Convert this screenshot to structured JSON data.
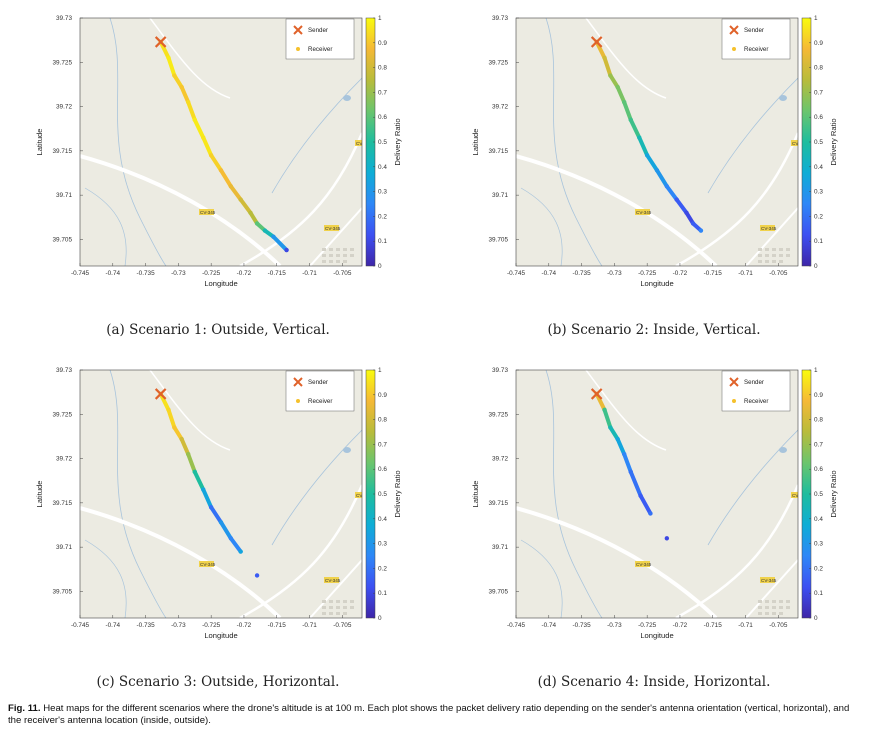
{
  "caption": {
    "label": "Fig. 11.",
    "text": "Heat maps for the different scenarios where the drone's altitude is at 100 m. Each plot shows the packet delivery ratio depending on the sender's antenna orientation (vertical, horizontal), and the receiver's antenna location (inside, outside)."
  },
  "colors": {
    "map_bg": "#ecebe2",
    "road": "#ffffff",
    "stream": "#a8c4dc",
    "sender": "#e0622a",
    "receiver": "#f5c12c",
    "colormap": [
      "#3e26a8",
      "#3d50f2",
      "#2e87f7",
      "#0eadd6",
      "#1ebd9e",
      "#6bc56d",
      "#b8bc3b",
      "#f5b936",
      "#f9fb0e"
    ]
  },
  "chart_data": [
    {
      "type": "heatmap",
      "subcaption": "(a) Scenario 1: Outside, Vertical.",
      "xlabel": "Longitude",
      "ylabel": "Latitude",
      "xlim": [
        -0.745,
        -0.702
      ],
      "ylim": [
        39.702,
        39.73
      ],
      "xticks": [
        "-0.745",
        "-0.74",
        "-0.735",
        "-0.73",
        "-0.725",
        "-0.72",
        "-0.715",
        "-0.71",
        "-0.705"
      ],
      "yticks": [
        "39.73",
        "39.725",
        "39.72",
        "39.715",
        "39.71",
        "39.705"
      ],
      "colorbar": {
        "label": "Delivery Ratio",
        "ticks": [
          "0",
          "0.1",
          "0.2",
          "0.3",
          "0.4",
          "0.5",
          "0.6",
          "0.7",
          "0.8",
          "0.9",
          "1"
        ]
      },
      "legend": {
        "sender": "Sender",
        "receiver": "Receiver"
      },
      "road_labels": [
        "CV-345",
        "CV-345",
        "CV-345"
      ],
      "sender": {
        "lon": -0.7327,
        "lat": 39.7273
      },
      "points": [
        [
          -0.7327,
          39.7273,
          0.95
        ],
        [
          -0.7315,
          39.7255,
          0.97
        ],
        [
          -0.7306,
          39.7235,
          0.92
        ],
        [
          -0.7295,
          39.7222,
          0.9
        ],
        [
          -0.7285,
          39.7205,
          0.94
        ],
        [
          -0.7275,
          39.7185,
          0.97
        ],
        [
          -0.7262,
          39.7165,
          0.96
        ],
        [
          -0.725,
          39.7145,
          0.92
        ],
        [
          -0.7235,
          39.7128,
          0.88
        ],
        [
          -0.722,
          39.711,
          0.85
        ],
        [
          -0.7205,
          39.7095,
          0.8
        ],
        [
          -0.719,
          39.708,
          0.75
        ],
        [
          -0.718,
          39.7068,
          0.6
        ],
        [
          -0.7168,
          39.706,
          0.45
        ],
        [
          -0.7155,
          39.7053,
          0.3
        ],
        [
          -0.7135,
          39.7038,
          0.1
        ]
      ]
    },
    {
      "type": "heatmap",
      "subcaption": "(b) Scenario 2: Inside, Vertical.",
      "xlabel": "Longitude",
      "ylabel": "Latitude",
      "xlim": [
        -0.745,
        -0.702
      ],
      "ylim": [
        39.702,
        39.73
      ],
      "xticks": [
        "-0.745",
        "-0.74",
        "-0.735",
        "-0.73",
        "-0.725",
        "-0.72",
        "-0.715",
        "-0.71",
        "-0.705"
      ],
      "yticks": [
        "39.73",
        "39.725",
        "39.72",
        "39.715",
        "39.71",
        "39.705"
      ],
      "colorbar": {
        "label": "Delivery Ratio",
        "ticks": [
          "0",
          "0.1",
          "0.2",
          "0.3",
          "0.4",
          "0.5",
          "0.6",
          "0.7",
          "0.8",
          "0.9",
          "1"
        ]
      },
      "legend": {
        "sender": "Sender",
        "receiver": "Receiver"
      },
      "road_labels": [
        "CV-345",
        "CV-345",
        "CV-345"
      ],
      "sender": {
        "lon": -0.7327,
        "lat": 39.7273
      },
      "points": [
        [
          -0.7327,
          39.7273,
          0.85
        ],
        [
          -0.7315,
          39.7255,
          0.8
        ],
        [
          -0.7306,
          39.7235,
          0.7
        ],
        [
          -0.7295,
          39.7222,
          0.65
        ],
        [
          -0.7285,
          39.7205,
          0.6
        ],
        [
          -0.7275,
          39.7185,
          0.55
        ],
        [
          -0.7262,
          39.7165,
          0.45
        ],
        [
          -0.725,
          39.7145,
          0.35
        ],
        [
          -0.7235,
          39.7128,
          0.3
        ],
        [
          -0.722,
          39.711,
          0.25
        ],
        [
          -0.7205,
          39.7095,
          0.15
        ],
        [
          -0.719,
          39.708,
          0.1
        ],
        [
          -0.718,
          39.7068,
          0.15
        ],
        [
          -0.7168,
          39.706,
          0.25
        ]
      ]
    },
    {
      "type": "heatmap",
      "subcaption": "(c) Scenario 3: Outside, Horizontal.",
      "xlabel": "Longitude",
      "ylabel": "Latitude",
      "xlim": [
        -0.745,
        -0.702
      ],
      "ylim": [
        39.702,
        39.73
      ],
      "xticks": [
        "-0.745",
        "-0.74",
        "-0.735",
        "-0.73",
        "-0.725",
        "-0.72",
        "-0.715",
        "-0.71",
        "-0.705"
      ],
      "yticks": [
        "39.73",
        "39.725",
        "39.72",
        "39.715",
        "39.71",
        "39.705"
      ],
      "colorbar": {
        "label": "Delivery Ratio",
        "ticks": [
          "0",
          "0.1",
          "0.2",
          "0.3",
          "0.4",
          "0.5",
          "0.6",
          "0.7",
          "0.8",
          "0.9",
          "1"
        ]
      },
      "legend": {
        "sender": "Sender",
        "receiver": "Receiver"
      },
      "road_labels": [
        "CV-345",
        "CV-345",
        "CV-345"
      ],
      "sender": {
        "lon": -0.7327,
        "lat": 39.7273
      },
      "points": [
        [
          -0.7327,
          39.7273,
          0.95
        ],
        [
          -0.7315,
          39.7255,
          0.93
        ],
        [
          -0.7306,
          39.7235,
          0.9
        ],
        [
          -0.7295,
          39.7222,
          0.8
        ],
        [
          -0.7285,
          39.7205,
          0.7
        ],
        [
          -0.7275,
          39.7185,
          0.5
        ],
        [
          -0.7262,
          39.7165,
          0.35
        ],
        [
          -0.725,
          39.7145,
          0.2
        ],
        [
          -0.7235,
          39.7128,
          0.3
        ],
        [
          -0.722,
          39.711,
          0.25
        ],
        [
          -0.7205,
          39.7095,
          0.35
        ],
        [
          -0.718,
          39.7068,
          0.15
        ]
      ]
    },
    {
      "type": "heatmap",
      "subcaption": "(d) Scenario 4: Inside, Horizontal.",
      "xlabel": "Longitude",
      "ylabel": "Latitude",
      "xlim": [
        -0.745,
        -0.702
      ],
      "ylim": [
        39.702,
        39.73
      ],
      "xticks": [
        "-0.745",
        "-0.74",
        "-0.735",
        "-0.73",
        "-0.725",
        "-0.72",
        "-0.715",
        "-0.71",
        "-0.705"
      ],
      "yticks": [
        "39.73",
        "39.725",
        "39.72",
        "39.715",
        "39.71",
        "39.705"
      ],
      "colorbar": {
        "label": "Delivery Ratio",
        "ticks": [
          "0",
          "0.1",
          "0.2",
          "0.3",
          "0.4",
          "0.5",
          "0.6",
          "0.7",
          "0.8",
          "0.9",
          "1"
        ]
      },
      "legend": {
        "sender": "Sender",
        "receiver": "Receiver"
      },
      "road_labels": [
        "CV-345",
        "CV-345",
        "CV-345"
      ],
      "sender": {
        "lon": -0.7327,
        "lat": 39.7273
      },
      "points": [
        [
          -0.7327,
          39.7273,
          0.85
        ],
        [
          -0.7315,
          39.7255,
          0.55
        ],
        [
          -0.7306,
          39.7235,
          0.45
        ],
        [
          -0.7295,
          39.7222,
          0.35
        ],
        [
          -0.7285,
          39.7205,
          0.25
        ],
        [
          -0.7275,
          39.7185,
          0.2
        ],
        [
          -0.726,
          39.7158,
          0.15
        ],
        [
          -0.7245,
          39.7138,
          0.2
        ],
        [
          -0.722,
          39.711,
          0.1
        ]
      ]
    }
  ]
}
